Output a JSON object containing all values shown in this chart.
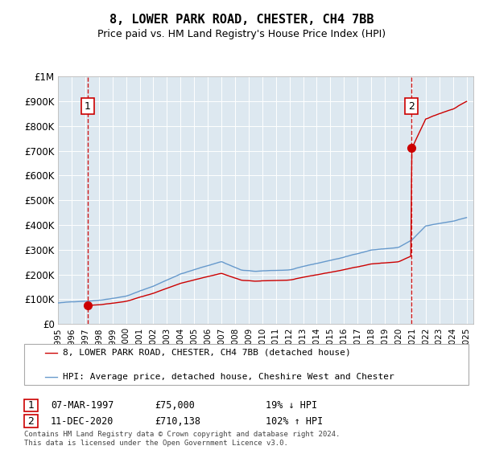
{
  "title": "8, LOWER PARK ROAD, CHESTER, CH4 7BB",
  "subtitle": "Price paid vs. HM Land Registry's House Price Index (HPI)",
  "legend_line1": "8, LOWER PARK ROAD, CHESTER, CH4 7BB (detached house)",
  "legend_line2": "HPI: Average price, detached house, Cheshire West and Chester",
  "annotation1_label": "1",
  "annotation1_date": "07-MAR-1997",
  "annotation1_price": "£75,000",
  "annotation1_hpi": "19% ↓ HPI",
  "annotation1_year": 1997.18,
  "annotation1_value": 75000,
  "annotation2_label": "2",
  "annotation2_date": "11-DEC-2020",
  "annotation2_price": "£710,138",
  "annotation2_hpi": "102% ↑ HPI",
  "annotation2_year": 2020.95,
  "annotation2_value": 710138,
  "hpi_color": "#6699cc",
  "price_color": "#cc0000",
  "dot_color": "#cc0000",
  "dashed_color": "#cc0000",
  "bg_color": "#dde8f0",
  "plot_bg": "#dde8f0",
  "ylabel_color": "#000000",
  "ylim": [
    0,
    1000000
  ],
  "yticks": [
    0,
    100000,
    200000,
    300000,
    400000,
    500000,
    600000,
    700000,
    800000,
    900000,
    1000000
  ],
  "ytick_labels": [
    "£0",
    "£100K",
    "£200K",
    "£300K",
    "£400K",
    "£500K",
    "£600K",
    "£700K",
    "£800K",
    "£900K",
    "£1M"
  ],
  "footer": "Contains HM Land Registry data © Crown copyright and database right 2024.\nThis data is licensed under the Open Government Licence v3.0.",
  "year_start": 1995,
  "year_end": 2025
}
